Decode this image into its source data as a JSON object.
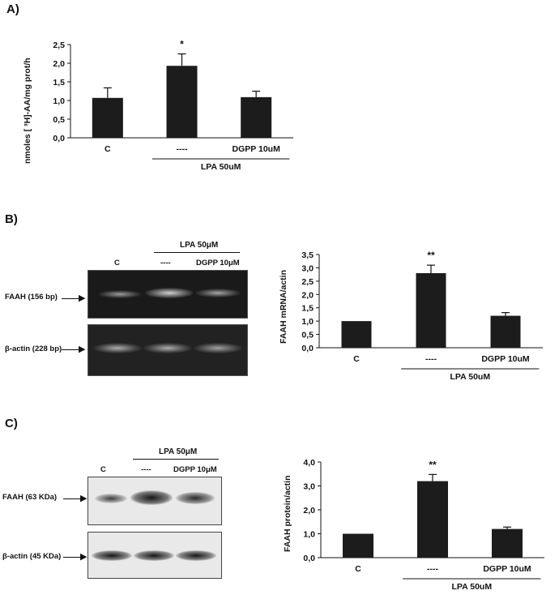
{
  "panels": {
    "a": {
      "label": "A)"
    },
    "b": {
      "label": "B)"
    },
    "c": {
      "label": "C)"
    }
  },
  "panel_b_gel": {
    "treatment_header": "LPA 50μM",
    "lanes": [
      "C",
      "----",
      "DGPP 10μM"
    ],
    "rows": [
      "FAAH (156 bp)",
      "β-actin (228 bp)"
    ]
  },
  "panel_c_blot": {
    "treatment_header": "LPA 50μM",
    "lanes": [
      "C",
      "----",
      "DGPP 10μM"
    ],
    "rows": [
      "FAAH (63 KDa)",
      "β-actin (45 KDa)"
    ]
  },
  "chart_data": [
    {
      "type": "bar",
      "panel": "A)",
      "categories": [
        "C",
        "----",
        "DGPP 10uM"
      ],
      "values": [
        1.07,
        1.93,
        1.09
      ],
      "errors": [
        0.27,
        0.32,
        0.16
      ],
      "annotations": [
        "",
        "*",
        ""
      ],
      "ylabel": "nmoles [ ³H]-AA/mg prot/h",
      "group_label": "LPA 50uM",
      "yticks": [
        "0,0",
        "0,5",
        "1,0",
        "1,5",
        "2,0",
        "2,5"
      ],
      "ylim": [
        0,
        2.5
      ],
      "grid": false,
      "color": "#1c1c1c"
    },
    {
      "type": "bar",
      "panel": "B)",
      "categories": [
        "C",
        "----",
        "DGPP 10uM"
      ],
      "values": [
        1.0,
        2.8,
        1.2
      ],
      "errors": [
        0.0,
        0.3,
        0.12
      ],
      "annotations": [
        "",
        "**",
        ""
      ],
      "ylabel": "FAAH mRNA/actin",
      "group_label": "LPA 50uM",
      "yticks": [
        "0,0",
        "0,5",
        "1,0",
        "1,5",
        "2,0",
        "2,5",
        "3,0",
        "3,5"
      ],
      "ylim": [
        0,
        3.5
      ],
      "grid": false,
      "color": "#1c1c1c"
    },
    {
      "type": "bar",
      "panel": "C)",
      "categories": [
        "C",
        "----",
        "DGPP 10uM"
      ],
      "values": [
        1.0,
        3.2,
        1.2
      ],
      "errors": [
        0.0,
        0.28,
        0.08
      ],
      "annotations": [
        "",
        "**",
        ""
      ],
      "ylabel": "FAAH protein/actin",
      "group_label": "LPA 50uM",
      "yticks": [
        "0,0",
        "1,0",
        "2,0",
        "3,0",
        "4,0"
      ],
      "ylim": [
        0,
        4
      ],
      "grid": false,
      "color": "#1c1c1c"
    }
  ]
}
